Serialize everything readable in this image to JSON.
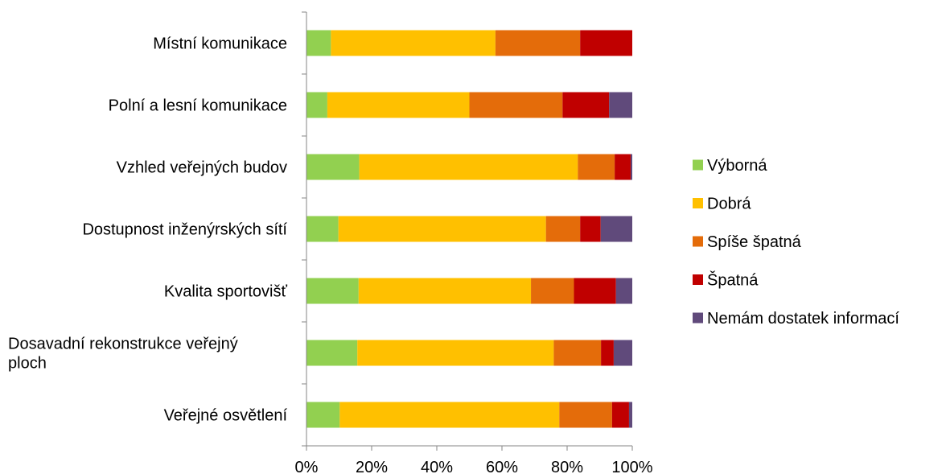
{
  "chart_data": {
    "type": "bar",
    "orientation": "horizontal",
    "stacked": "percent",
    "categories": [
      "Místní komunikace",
      "Polní a lesní komunikace",
      "Vzhled veřejných budov",
      "Dostupnost inženýrských sítí",
      "Kvalita sportovišť",
      "Dosavadní rekonstrukce veřejný ploch",
      "Veřejné osvětlení"
    ],
    "category_lines": [
      [
        "Místní komunikace"
      ],
      [
        "Polní a lesní komunikace"
      ],
      [
        "Vzhled veřejných budov"
      ],
      [
        "Dostupnost inženýrských sítí"
      ],
      [
        "Kvalita sportovišť"
      ],
      [
        "Dosavadní rekonstrukce veřejný",
        "ploch"
      ],
      [
        "Veřejné osvětlení"
      ]
    ],
    "series": [
      {
        "name": "Výborná",
        "color": "#92d050",
        "values": [
          7.5,
          6.4,
          16.2,
          9.8,
          16.0,
          15.6,
          10.2
        ]
      },
      {
        "name": "Dobrá",
        "color": "#ffc000",
        "values": [
          50.5,
          43.6,
          67.1,
          63.7,
          52.9,
          60.3,
          67.4
        ]
      },
      {
        "name": "Spíše špatná",
        "color": "#e46c0a",
        "values": [
          26.0,
          28.6,
          11.3,
          10.5,
          13.2,
          14.5,
          16.2
        ]
      },
      {
        "name": "Špatná",
        "color": "#c00000",
        "values": [
          16.0,
          14.3,
          4.9,
          6.3,
          12.9,
          3.9,
          5.2
        ]
      },
      {
        "name": "Nemám dostatek informací",
        "color": "#604a7b",
        "values": [
          0.0,
          7.1,
          0.5,
          9.7,
          5.0,
          5.7,
          1.0
        ]
      }
    ],
    "xlim": [
      0,
      100
    ],
    "x_ticks": [
      "0%",
      "20%",
      "40%",
      "60%",
      "80%",
      "100%"
    ],
    "grid": false,
    "legend": "right"
  }
}
